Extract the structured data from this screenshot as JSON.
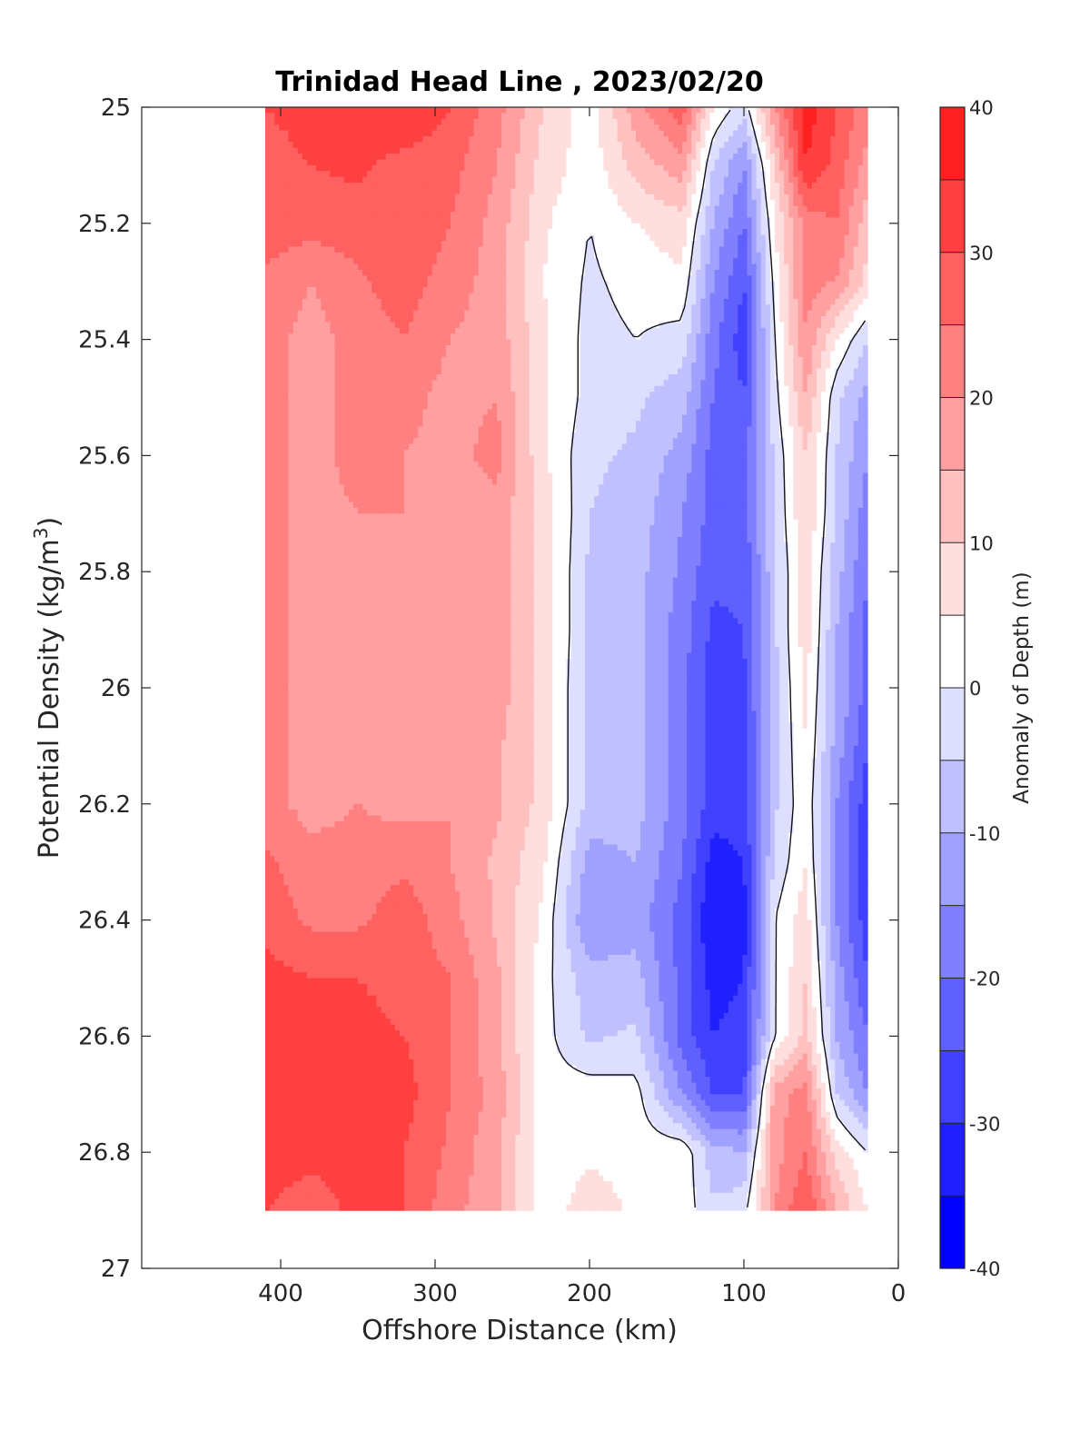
{
  "chart_data": {
    "type": "heatmap",
    "subtype": "filled-contour",
    "title": "Trinidad Head Line , 2023/02/20",
    "xlabel": "Offshore Distance (km)",
    "ylabel": "Potential Density (kg/m",
    "ylabel_sup": "3",
    "ylabel_close": ")",
    "colorbar_label": "Anomaly of Depth (m)",
    "x_reversed": true,
    "y_reversed": true,
    "xlim": [
      490,
      0
    ],
    "ylim": [
      25,
      27
    ],
    "xticks": [
      400,
      300,
      200,
      100,
      0
    ],
    "yticks": [
      25,
      25.2,
      25.4,
      25.6,
      25.8,
      26,
      26.2,
      26.4,
      26.6,
      26.8,
      27
    ],
    "colorbar": {
      "range": [
        -40,
        40
      ],
      "step": 5,
      "ticks": [
        -40,
        -30,
        -20,
        -10,
        0,
        10,
        20,
        30,
        40
      ],
      "colors": [
        "#0000ff",
        "#2020ff",
        "#4040ff",
        "#6060ff",
        "#8080ff",
        "#a0a0ff",
        "#c0c0ff",
        "#dedeff",
        "#ffffff",
        "#ffdede",
        "#ffc0c0",
        "#ff9f9f",
        "#ff8080",
        "#ff6060",
        "#ff4040",
        "#ff2020"
      ]
    },
    "data_extent": {
      "x": [
        410,
        20
      ],
      "y": [
        25,
        26.9
      ]
    },
    "grid": false,
    "x": [
      410,
      380,
      350,
      320,
      290,
      260,
      230,
      200,
      170,
      140,
      120,
      100,
      80,
      60,
      40,
      20
    ],
    "y": [
      25,
      25.1,
      25.2,
      25.3,
      25.4,
      25.5,
      25.6,
      25.7,
      25.8,
      25.9,
      26,
      26.1,
      26.2,
      26.3,
      26.4,
      26.5,
      26.6,
      26.7,
      26.8,
      26.9
    ],
    "z": [
      [
        30,
        32,
        33,
        35,
        30,
        22,
        10,
        2,
        18,
        28,
        5,
        -3,
        20,
        38,
        30,
        22
      ],
      [
        28,
        30,
        31,
        28,
        27,
        20,
        8,
        2,
        12,
        18,
        -5,
        -15,
        10,
        35,
        28,
        18
      ],
      [
        28,
        27,
        28,
        30,
        25,
        18,
        6,
        0,
        5,
        8,
        -10,
        -20,
        5,
        22,
        25,
        12
      ],
      [
        24,
        20,
        24,
        28,
        22,
        18,
        5,
        -1,
        2,
        4,
        -15,
        -25,
        2,
        22,
        20,
        8
      ],
      [
        22,
        18,
        22,
        25,
        20,
        18,
        6,
        -2,
        0,
        -2,
        -18,
        -28,
        0,
        20,
        5,
        -5
      ],
      [
        22,
        18,
        22,
        22,
        18,
        20,
        6,
        -2,
        -4,
        -8,
        -20,
        -25,
        -2,
        15,
        -4,
        -12
      ],
      [
        22,
        18,
        22,
        20,
        18,
        22,
        6,
        -4,
        -6,
        -12,
        -22,
        -22,
        -4,
        10,
        -5,
        -15
      ],
      [
        22,
        18,
        20,
        20,
        18,
        18,
        8,
        -5,
        -7,
        -15,
        -22,
        -22,
        -5,
        10,
        -6,
        -18
      ],
      [
        22,
        18,
        20,
        18,
        18,
        18,
        8,
        -6,
        -8,
        -16,
        -24,
        -24,
        -6,
        8,
        -8,
        -20
      ],
      [
        22,
        18,
        20,
        18,
        18,
        18,
        8,
        -6,
        -8,
        -18,
        -26,
        -25,
        -6,
        8,
        -10,
        -22
      ],
      [
        22,
        18,
        20,
        18,
        18,
        18,
        8,
        -7,
        -8,
        -18,
        -28,
        -26,
        -6,
        6,
        -10,
        -22
      ],
      [
        22,
        18,
        20,
        18,
        18,
        16,
        8,
        -7,
        -8,
        -18,
        -28,
        -28,
        -6,
        5,
        -12,
        -25
      ],
      [
        22,
        18,
        20,
        18,
        20,
        16,
        8,
        -7,
        -8,
        -18,
        -28,
        -28,
        -6,
        4,
        -15,
        -28
      ],
      [
        26,
        22,
        22,
        24,
        20,
        14,
        6,
        -12,
        -10,
        -20,
        -32,
        -30,
        -4,
        5,
        -15,
        -28
      ],
      [
        28,
        24,
        24,
        28,
        22,
        14,
        4,
        -15,
        -12,
        -22,
        -35,
        -32,
        0,
        8,
        -15,
        -28
      ],
      [
        32,
        30,
        30,
        28,
        25,
        16,
        2,
        -8,
        -8,
        -22,
        -32,
        -30,
        0,
        10,
        -12,
        -25
      ],
      [
        34,
        34,
        32,
        30,
        25,
        16,
        2,
        -6,
        -4,
        -22,
        -30,
        -28,
        0,
        12,
        -10,
        -20
      ],
      [
        33,
        35,
        33,
        32,
        25,
        18,
        2,
        3,
        2,
        -15,
        -25,
        -25,
        18,
        22,
        -5,
        -15
      ],
      [
        32,
        31,
        32,
        30,
        24,
        16,
        2,
        4,
        3,
        4,
        -8,
        -10,
        18,
        25,
        8,
        0
      ],
      [
        30,
        28,
        31,
        30,
        22,
        16,
        2,
        8,
        4,
        3,
        -4,
        -2,
        20,
        30,
        15,
        5
      ]
    ]
  }
}
